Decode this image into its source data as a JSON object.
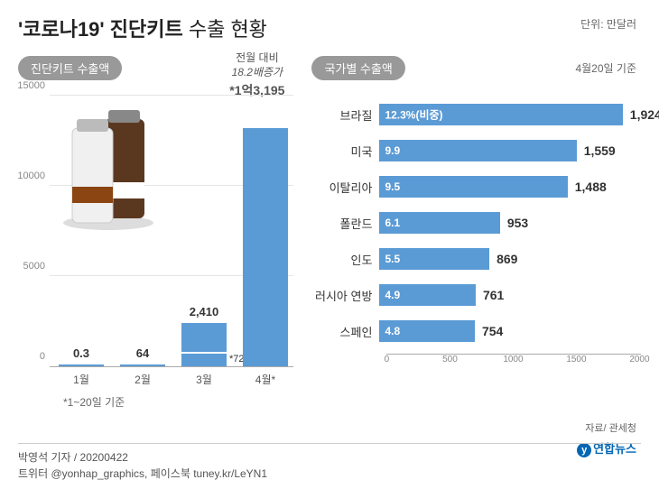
{
  "title_bold": "'코로나19' 진단키트",
  "title_light": " 수출 현황",
  "unit_label": "단위: 만달러",
  "left": {
    "badge": "진단키트 수출액",
    "note_line1": "전월 대비",
    "note_line2": "18.2배증가",
    "big_value": "*1억3,195",
    "footnote": "*1~20일 기준",
    "ylim": [
      0,
      15000
    ],
    "yticks": [
      0,
      5000,
      10000,
      15000
    ],
    "bars": [
      {
        "x": "1월",
        "value": 0.3,
        "label": "0.3"
      },
      {
        "x": "2월",
        "value": 64,
        "label": "64"
      },
      {
        "x": "3월",
        "value": 2410,
        "label": "2,410"
      },
      {
        "x": "4월*",
        "value": 13195,
        "label": ""
      }
    ],
    "marker": {
      "bar_index": 2,
      "value": 725,
      "label": "*725"
    },
    "bar_color": "#5b9bd5",
    "grid_color": "#e5e5e5"
  },
  "right": {
    "badge": "국가별 수출액",
    "note": "4월20일 기준",
    "xlim": [
      0,
      2000
    ],
    "xticks": [
      0,
      500,
      1000,
      1500,
      2000
    ],
    "bars": [
      {
        "country": "브라질",
        "pct": "12.3%(비중)",
        "value": 1924,
        "label": "1,924"
      },
      {
        "country": "미국",
        "pct": "9.9",
        "value": 1559,
        "label": "1,559"
      },
      {
        "country": "이탈리아",
        "pct": "9.5",
        "value": 1488,
        "label": "1,488"
      },
      {
        "country": "폴란드",
        "pct": "6.1",
        "value": 953,
        "label": "953"
      },
      {
        "country": "인도",
        "pct": "5.5",
        "value": 869,
        "label": "869"
      },
      {
        "country": "러시아 연방",
        "pct": "4.9",
        "value": 761,
        "label": "761"
      },
      {
        "country": "스페인",
        "pct": "4.8",
        "value": 754,
        "label": "754"
      }
    ],
    "bar_color": "#5b9bd5"
  },
  "source": "자료/ 관세청",
  "logo_text": "연합뉴스",
  "footer_line1": "박영석 기자 / 20200422",
  "footer_line2": "트위터 @yonhap_graphics, 페이스북 tuney.kr/LeYN1"
}
